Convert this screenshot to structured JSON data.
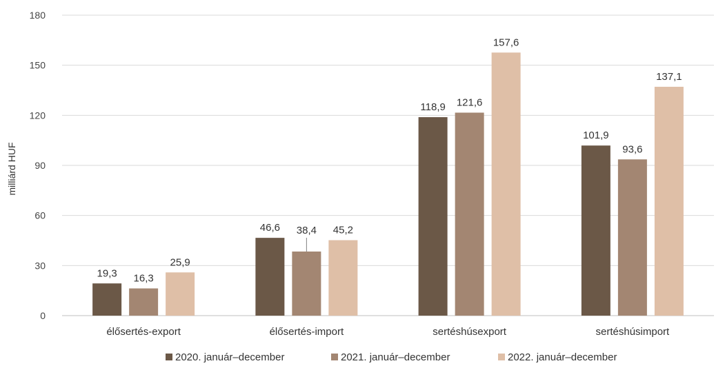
{
  "chart_data": {
    "type": "bar",
    "title": "",
    "xlabel": "",
    "ylabel": "milliárd HUF",
    "ylim": [
      0,
      180
    ],
    "yticks": [
      0,
      30,
      60,
      90,
      120,
      150,
      180
    ],
    "grid": true,
    "legend_position": "bottom",
    "categories": [
      "élősertés-export",
      "élősertés-import",
      "sertéshúsexport",
      "sertéshúsimport"
    ],
    "series": [
      {
        "name": "2020. január–december",
        "color": "#6b5847",
        "values": [
          19.3,
          46.6,
          118.9,
          101.9
        ],
        "labels": [
          "19,3",
          "46,6",
          "118,9",
          "101,9"
        ]
      },
      {
        "name": "2021.  január–december",
        "color": "#a38672",
        "values": [
          16.3,
          38.4,
          121.6,
          93.6
        ],
        "labels": [
          "16,3",
          "38,4",
          "121,6",
          "93,6"
        ]
      },
      {
        "name": "2022.  január–december",
        "color": "#dfbfa7",
        "values": [
          25.9,
          45.2,
          157.6,
          137.1
        ],
        "labels": [
          "25,9",
          "45,2",
          "157,6",
          "137,1"
        ]
      }
    ]
  }
}
